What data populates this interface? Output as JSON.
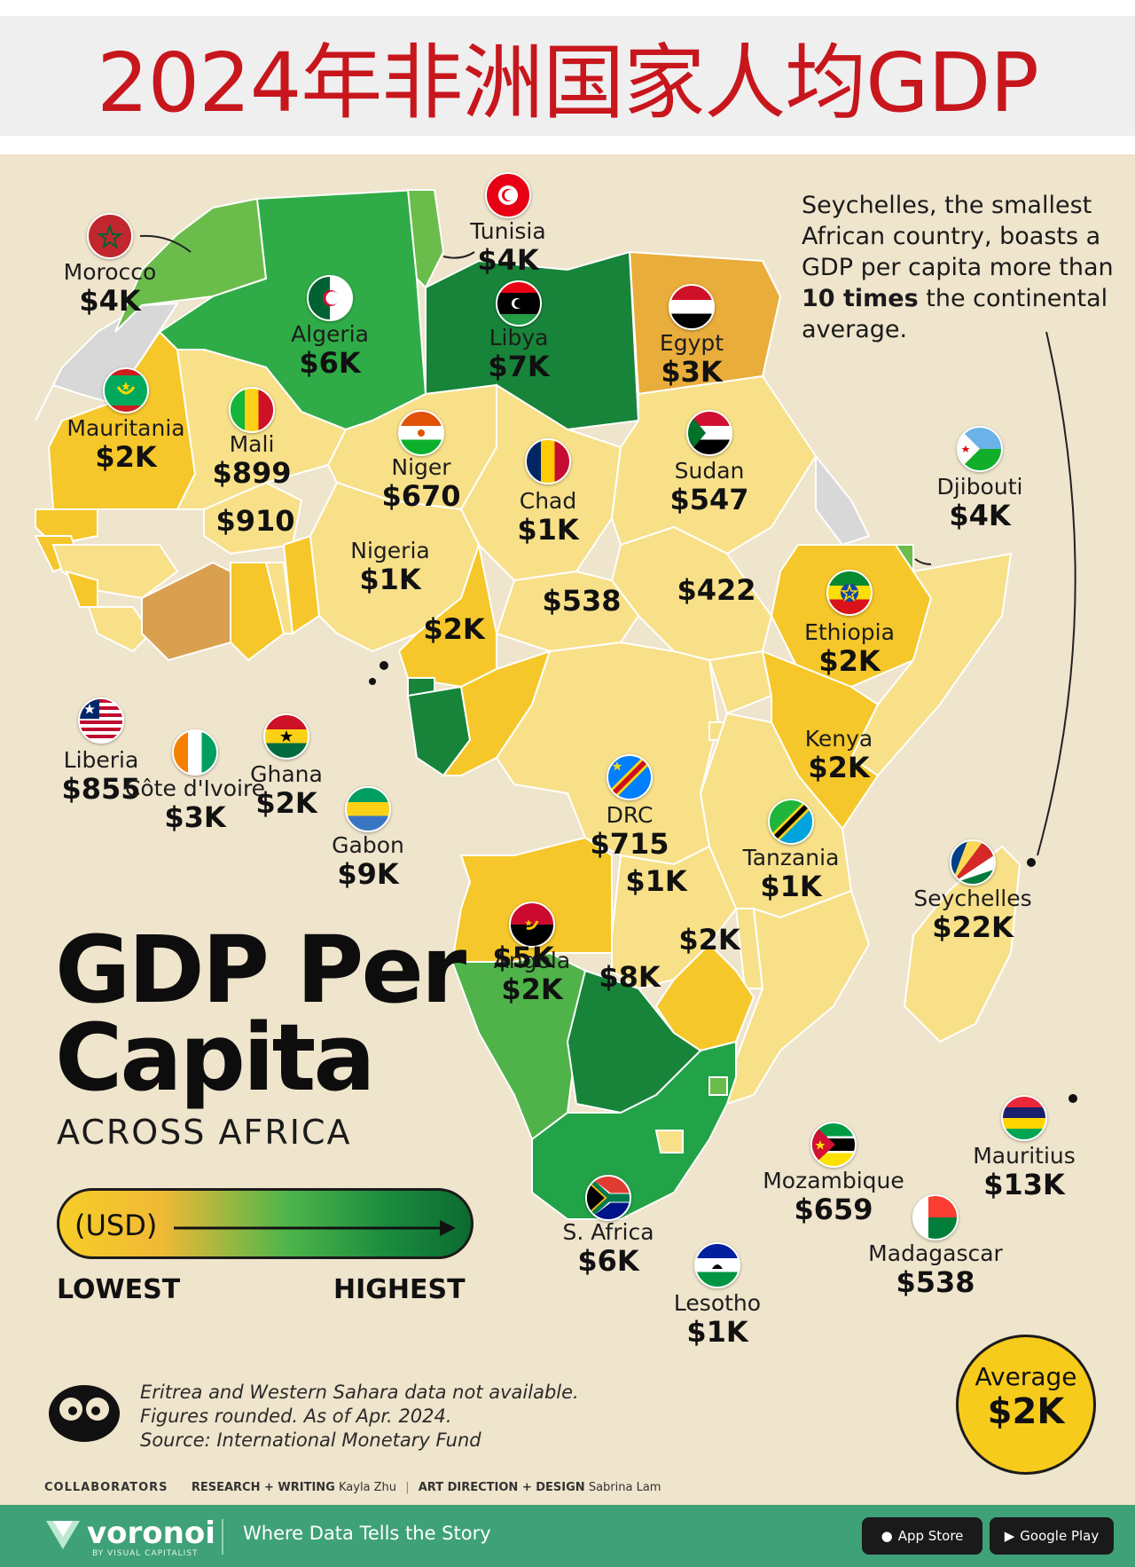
{
  "banner": {
    "title": "2024年非洲国家人均GDP"
  },
  "poster": {
    "title_line1": "GDP Per",
    "title_line2": "Capita",
    "subtitle": "ACROSS AFRICA",
    "callout": {
      "part1": "Seychelles, the smallest African country, boasts a GDP per capita more than ",
      "emphasis": "10 times",
      "part2": " the continental average."
    },
    "legend": {
      "unit": "(USD)",
      "low": "LOWEST",
      "high": "HIGHEST",
      "colors": [
        "#f6cd27",
        "#f0b936",
        "#4fb64a",
        "#0c6b30"
      ]
    },
    "average": {
      "label": "Average",
      "value": "$2K"
    },
    "notes": {
      "line1": "Eritrea and Western Sahara data not available.",
      "line2": "Figures rounded. As of Apr. 2024.",
      "line3": "Source: International Monetary Fund"
    },
    "credits": {
      "collaborators": "COLLABORATORS",
      "research_label": "RESEARCH + WRITING",
      "research_name": "Kayla Zhu",
      "design_label": "ART DIRECTION + DESIGN",
      "design_name": "Sabrina Lam"
    }
  },
  "countries": [
    {
      "name": "Morocco",
      "value": "$4K"
    },
    {
      "name": "Tunisia",
      "value": "$4K"
    },
    {
      "name": "Algeria",
      "value": "$6K"
    },
    {
      "name": "Libya",
      "value": "$7K"
    },
    {
      "name": "Egypt",
      "value": "$3K"
    },
    {
      "name": "Mauritania",
      "value": "$2K"
    },
    {
      "name": "Mali",
      "value": "$899"
    },
    {
      "name": "Niger",
      "value": "$670"
    },
    {
      "name": "Chad",
      "value": "$1K"
    },
    {
      "name": "Sudan",
      "value": "$547"
    },
    {
      "name": "Djibouti",
      "value": "$4K"
    },
    {
      "name": "Nigeria",
      "value": "$1K"
    },
    {
      "name": "Ethiopia",
      "value": "$2K"
    },
    {
      "name": "Kenya",
      "value": "$2K"
    },
    {
      "name": "Liberia",
      "value": "$855"
    },
    {
      "name": "Côte d'Ivoire",
      "value": "$3K"
    },
    {
      "name": "Ghana",
      "value": "$2K"
    },
    {
      "name": "Gabon",
      "value": "$9K"
    },
    {
      "name": "DRC",
      "value": "$715"
    },
    {
      "name": "Tanzania",
      "value": "$1K"
    },
    {
      "name": "Seychelles",
      "value": "$22K"
    },
    {
      "name": "Angola",
      "value": "$2K"
    },
    {
      "name": "Mozambique",
      "value": "$659"
    },
    {
      "name": "Mauritius",
      "value": "$13K"
    },
    {
      "name": "Madagascar",
      "value": "$538"
    },
    {
      "name": "S. Africa",
      "value": "$6K"
    },
    {
      "name": "Lesotho",
      "value": "$1K"
    }
  ],
  "unlabeled_values": [
    "$910",
    "$538",
    "$422",
    "$2K",
    "$1K",
    "$2K",
    "$5K",
    "$8K"
  ],
  "footer": {
    "brand": "voronoi",
    "brand_sub": "BY VISUAL CAPITALIST",
    "tagline": "Where Data Tells the Story",
    "app_store": "App Store",
    "google_play": "Google Play"
  }
}
